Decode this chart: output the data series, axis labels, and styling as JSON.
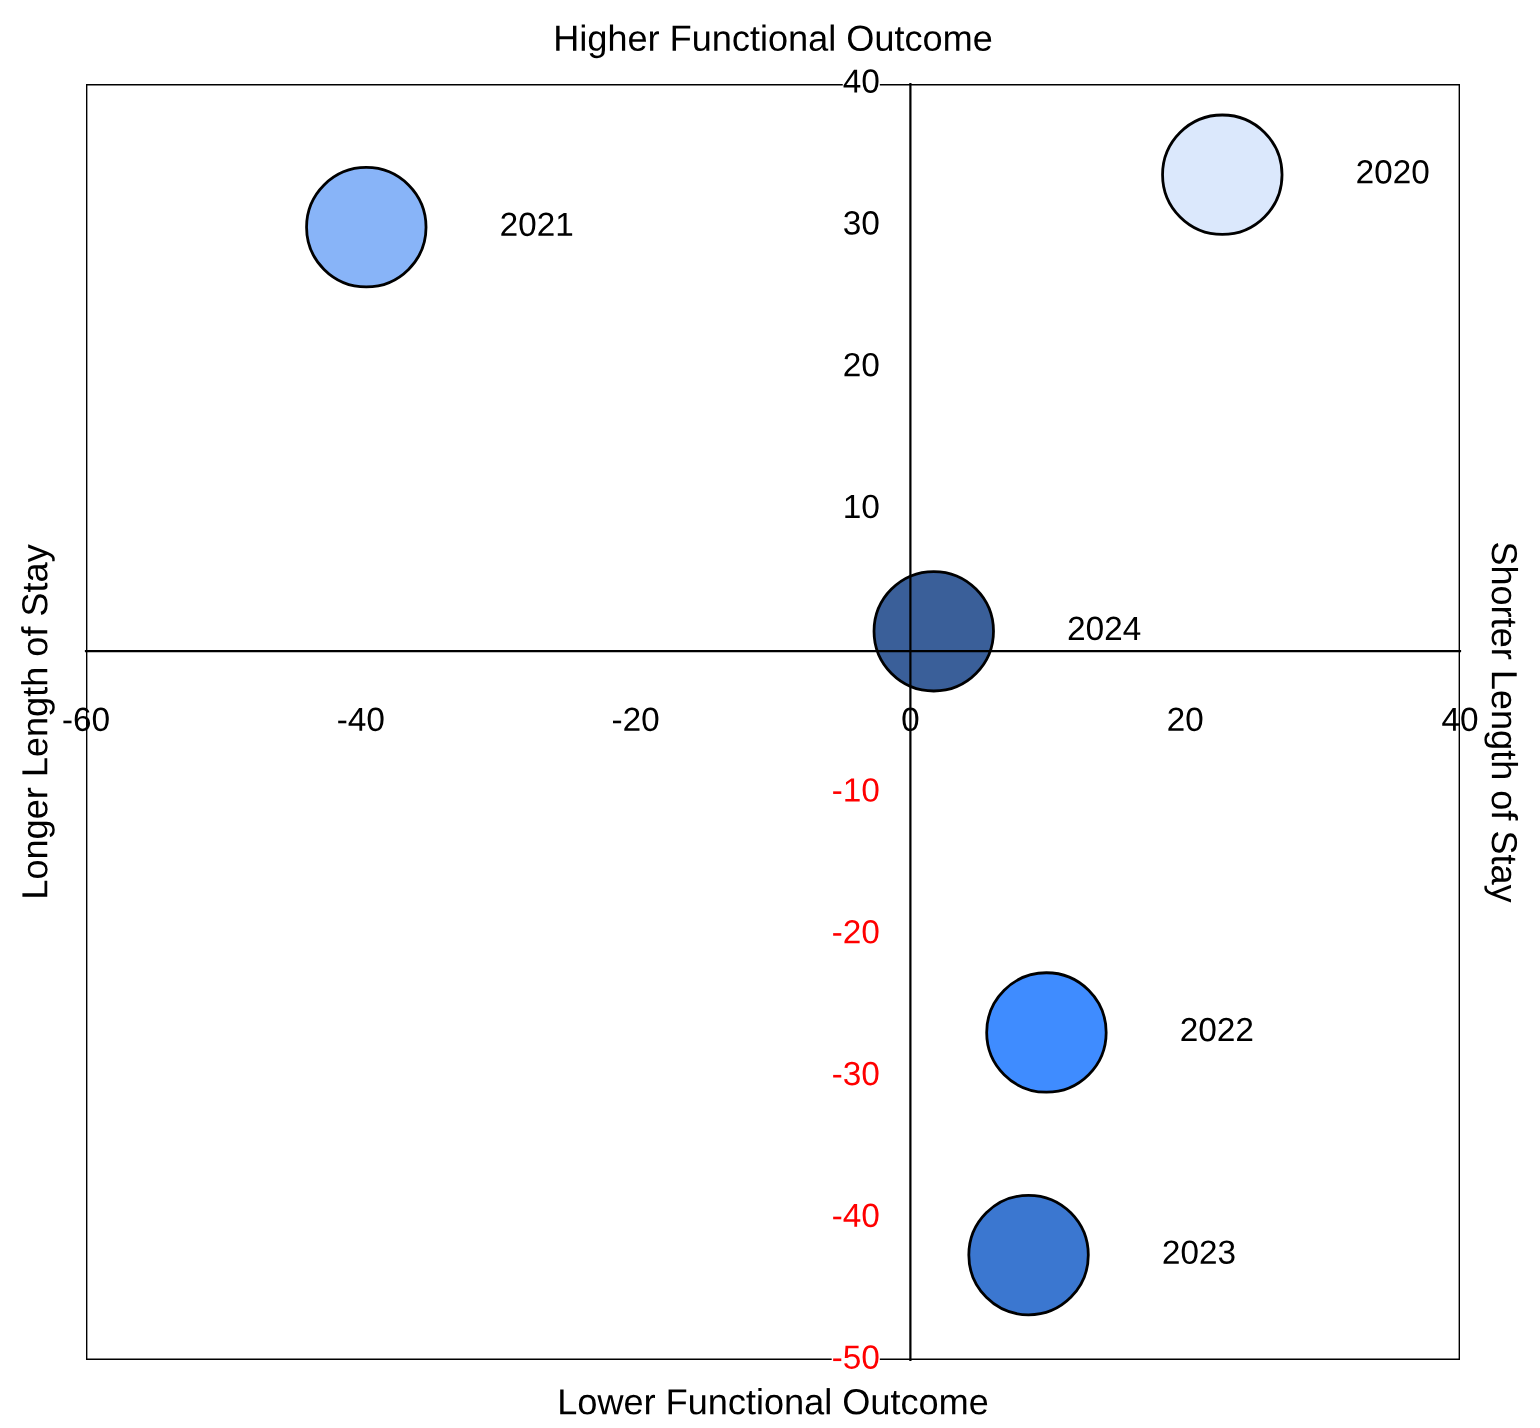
{
  "chart_data": {
    "type": "bubble",
    "title": "Higher Functional Outcome",
    "xlabel": "Lower Functional Outcome",
    "ylabel": "Longer Length of Stay",
    "annotations": [
      "Shorter Length of Stay"
    ],
    "xlim": [
      -60,
      40
    ],
    "xticks": [
      -60,
      -40,
      -20,
      0,
      20,
      40
    ],
    "ylim": [
      -50,
      40
    ],
    "yticks": [
      -50,
      -40,
      -30,
      -20,
      -10,
      10,
      20,
      30,
      40
    ],
    "grid": false,
    "legend": false,
    "series": [
      {
        "name": "2020",
        "color": "#dbe8fc",
        "x": [
          22.7
        ],
        "values": [
          33.6
        ],
        "sizes": [
          1
        ]
      },
      {
        "name": "2021",
        "color": "#88b4f8",
        "x": [
          -39.6
        ],
        "values": [
          29.9
        ],
        "sizes": [
          1
        ]
      },
      {
        "name": "2024",
        "color": "#3a5f99",
        "x": [
          1.7
        ],
        "values": [
          1.4
        ],
        "sizes": [
          1
        ]
      },
      {
        "name": "2022",
        "color": "#3f8cff",
        "x": [
          9.9
        ],
        "values": [
          -26.9
        ],
        "sizes": [
          1
        ]
      },
      {
        "name": "2023",
        "color": "#3b77d0",
        "x": [
          8.6
        ],
        "values": [
          -42.6
        ],
        "sizes": [
          1
        ]
      }
    ]
  }
}
